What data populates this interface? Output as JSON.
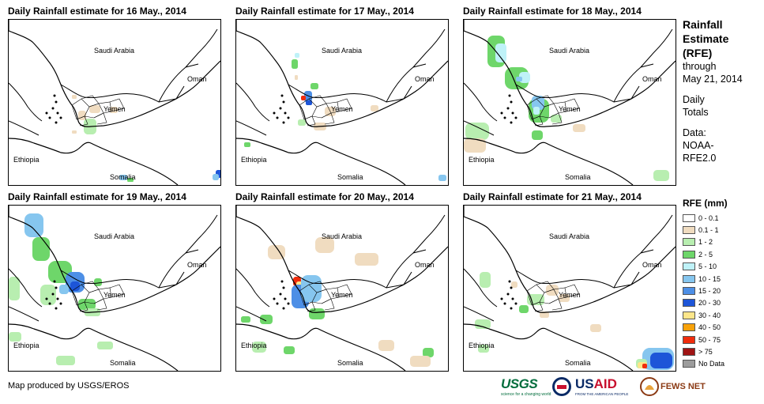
{
  "panels": [
    {
      "title": "Daily Rainfall estimate for 16 May., 2014",
      "day": 16
    },
    {
      "title": "Daily Rainfall estimate for 17 May., 2014",
      "day": 17
    },
    {
      "title": "Daily Rainfall estimate for 18 May., 2014",
      "day": 18
    },
    {
      "title": "Daily Rainfall estimate for 19 May., 2014",
      "day": 19
    },
    {
      "title": "Daily Rainfall estimate for 20 May., 2014",
      "day": 20
    },
    {
      "title": "Daily Rainfall estimate for 21 May., 2014",
      "day": 21
    }
  ],
  "map_labels": {
    "saudi": "Saudi Arabia",
    "oman": "Oman",
    "yemen": "Yemen",
    "ethiopia": "Ethiopia",
    "somalia": "Somalia"
  },
  "legend": {
    "title_lines": [
      "Rainfall",
      "Estimate",
      "(RFE)"
    ],
    "through_lines": [
      "through",
      "May 21, 2014"
    ],
    "daily_lines": [
      "Daily",
      "Totals"
    ],
    "data_lines": [
      "Data:",
      "NOAA-",
      "RFE2.0"
    ],
    "rfe_title": "RFE (mm)",
    "rfe_classes": [
      {
        "label": "0 - 0.1",
        "color": "#ffffff"
      },
      {
        "label": "0.1 - 1",
        "color": "#f0dcc0"
      },
      {
        "label": "1 - 2",
        "color": "#b8eeb0"
      },
      {
        "label": "2 - 5",
        "color": "#6ed66a"
      },
      {
        "label": "5 - 10",
        "color": "#bff2f8"
      },
      {
        "label": "10 - 15",
        "color": "#86c6ef"
      },
      {
        "label": "15 - 20",
        "color": "#4d8fe6"
      },
      {
        "label": "20 - 30",
        "color": "#1d55d8"
      },
      {
        "label": "30 - 40",
        "color": "#fde68a"
      },
      {
        "label": "40 - 50",
        "color": "#f8a20a"
      },
      {
        "label": "50 - 75",
        "color": "#f02c0c"
      },
      {
        "label": "> 75",
        "color": "#a01414"
      },
      {
        "label": "No Data",
        "color": "#9c9c9c"
      }
    ]
  },
  "footer": {
    "credit": "Map produced by USGS/EROS",
    "logos": {
      "usgs": "USGS",
      "usgs_tagline": "science for a changing world",
      "usaid_a": "US",
      "usaid_b": "AID",
      "usaid_tagline": "FROM THE AMERICAN PEOPLE",
      "fews": "FEWS NET"
    }
  }
}
